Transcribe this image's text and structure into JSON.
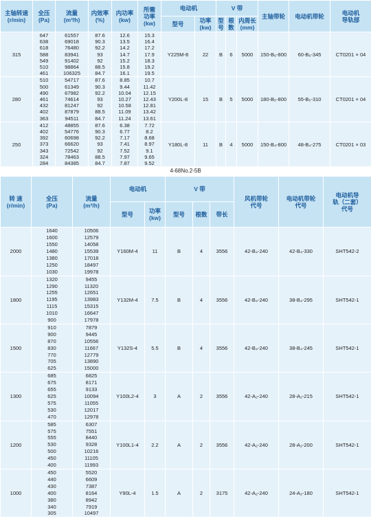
{
  "table1": {
    "header_top": [
      "主轴转速\n(r/min)",
      "全压\n(Pa)",
      "流量\n(m³/h)",
      "内效率\n(%)",
      "内功率\n(kw)",
      "所需\n功率\n(kw)",
      "电动机",
      "V 带",
      "主轴带轮",
      "电动机带轮",
      "电动机\n导轨部"
    ],
    "header_sub": [
      "型号",
      "功率\n(kw)",
      "型\n号",
      "根\n数",
      "内周长\n(mm)"
    ],
    "groups": [
      {
        "speed": 315,
        "rows": [
          [
            647,
            61557,
            87.6,
            12.6,
            15.3
          ],
          [
            638,
            69018,
            90.3,
            13.5,
            16.4
          ],
          [
            618,
            76480,
            92.2,
            14.2,
            17.2
          ],
          [
            588,
            83941,
            93,
            14.7,
            17.9
          ],
          [
            549,
            91402,
            92,
            15.2,
            18.3
          ],
          [
            510,
            98864,
            88.5,
            15.8,
            19.2
          ],
          [
            461,
            106325,
            84.7,
            16.1,
            19.5
          ]
        ],
        "fixed": [
          "Y225M-8",
          22,
          "B",
          6,
          5000,
          "150-B₆-800",
          "60-B₆-345",
          "CT0201 × 04"
        ]
      },
      {
        "speed": 280,
        "rows": [
          [
            510,
            54717,
            87.6,
            8.85,
            10.7
          ],
          [
            500,
            61349,
            90.3,
            9.44,
            11.42
          ],
          [
            490,
            67982,
            92.2,
            10.04,
            12.15
          ],
          [
            461,
            74614,
            93,
            10.27,
            12.43
          ],
          [
            432,
            81247,
            92,
            10.58,
            12.81
          ],
          [
            402,
            87879,
            88.5,
            11.09,
            13.42
          ],
          [
            363,
            94511,
            84.7,
            11.24,
            13.61
          ]
        ],
        "fixed": [
          "Y200L-8",
          15,
          "B",
          5,
          5000,
          "180-B₅-800",
          "55-B₅-310",
          "CT0201 × 04"
        ]
      },
      {
        "speed": 250,
        "rows": [
          [
            412,
            48855,
            87.6,
            6.38,
            7.72
          ],
          [
            402,
            54776,
            90.3,
            6.77,
            8.2
          ],
          [
            392,
            60698,
            92.2,
            7.17,
            8.68
          ],
          [
            373,
            66620,
            93,
            7.41,
            8.97
          ],
          [
            343,
            72542,
            92,
            7.52,
            9.1
          ],
          [
            324,
            78463,
            88.5,
            7.97,
            9.65
          ],
          [
            284,
            84385,
            84.7,
            7.87,
            9.52
          ]
        ],
        "fixed": [
          "Y180L-8",
          11,
          "B",
          4,
          5000,
          "150-B₄-800",
          "48-B₄-275",
          "CT0201 × 03"
        ]
      }
    ]
  },
  "caption": "4-68No.2-5B",
  "table2": {
    "header_top": [
      "转 速\n(r/min)",
      "全压\n(Pa)",
      "流量\n(m³/h)",
      "电动机",
      "V 带",
      "风机带轮\n代号",
      "电动机带轮\n代号",
      "电动机导\n轨（二套）\n代号"
    ],
    "header_sub": [
      "型号",
      "功率\n(kw)",
      "型号",
      "根数",
      "带长"
    ],
    "groups": [
      {
        "speed": 2000,
        "rows": [
          [
            1640,
            10506
          ],
          [
            1600,
            12579
          ],
          [
            1550,
            14058
          ],
          [
            1480,
            15539
          ],
          [
            1380,
            17018
          ],
          [
            1250,
            18497
          ],
          [
            1030,
            19978
          ]
        ],
        "fixed": [
          "Y160M-4",
          11,
          "B",
          4,
          3556,
          "42-B₄-240",
          "42-B₄-330",
          "SHT542-2"
        ]
      },
      {
        "speed": 1800,
        "rows": [
          [
            1320,
            9455
          ],
          [
            1290,
            11320
          ],
          [
            1255,
            12651
          ],
          [
            1195,
            13983
          ],
          [
            1115,
            15315
          ],
          [
            1010,
            16647
          ],
          [
            900,
            17978
          ]
        ],
        "fixed": [
          "Y132M-4",
          7.5,
          "B",
          4,
          3556,
          "42-B₄-240",
          "38-B₄-295",
          "SHT542-1"
        ]
      },
      {
        "speed": 1500,
        "rows": [
          [
            910,
            7879
          ],
          [
            900,
            9445
          ],
          [
            870,
            10556
          ],
          [
            830,
            11667
          ],
          [
            770,
            12779
          ],
          [
            705,
            13890
          ],
          [
            625,
            15000
          ]
        ],
        "fixed": [
          "Y132S-4",
          5.5,
          "B",
          4,
          3556,
          "42-B₄-240",
          "38-B₄-245",
          "SHT542-1"
        ]
      },
      {
        "speed": 1300,
        "rows": [
          [
            685,
            6825
          ],
          [
            675,
            8171
          ],
          [
            655,
            9133
          ],
          [
            625,
            10094
          ],
          [
            575,
            11055
          ],
          [
            530,
            12017
          ],
          [
            470,
            12978
          ]
        ],
        "fixed": [
          "Y100L2-4",
          3,
          "A",
          2,
          3556,
          "42-A₂-240",
          "28-A₂-215",
          "SHT542-1"
        ]
      },
      {
        "speed": 1200,
        "rows": [
          [
            585,
            6307
          ],
          [
            575,
            7551
          ],
          [
            555,
            8440
          ],
          [
            530,
            9328
          ],
          [
            500,
            10216
          ],
          [
            450,
            11105
          ],
          [
            400,
            11993
          ]
        ],
        "fixed": [
          "Y100L1-4",
          2.2,
          "A",
          2,
          3556,
          "42-A₂-240",
          "28-A₂-200",
          "SHT542-1"
        ]
      },
      {
        "speed": 1000,
        "rows": [
          [
            450,
            5520
          ],
          [
            440,
            6609
          ],
          [
            430,
            7387
          ],
          [
            400,
            8164
          ],
          [
            380,
            8942
          ],
          [
            340,
            7919
          ],
          [
            305,
            10497
          ]
        ],
        "fixed": [
          "Y90L-4",
          1.5,
          "A",
          2,
          3175,
          "42-A₂-240",
          "24-A₂-180",
          "SHT542-1"
        ]
      }
    ]
  }
}
